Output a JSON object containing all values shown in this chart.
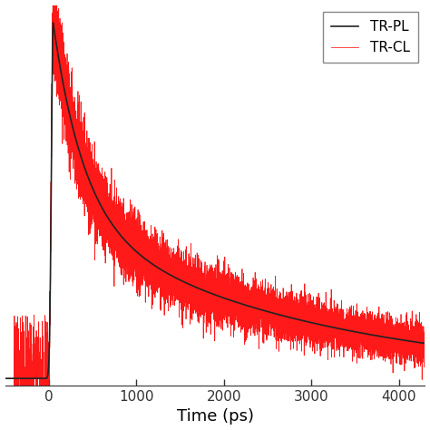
{
  "title": "",
  "xlabel": "Time (ps)",
  "ylabel": "",
  "xlim": [
    -500,
    4300
  ],
  "ylim": [
    -0.02,
    1.05
  ],
  "tr_pl_color": "#222222",
  "tr_cl_color": "#ff0000",
  "legend_labels": [
    "TR-PL",
    "TR-CL"
  ],
  "xticks": [
    0,
    1000,
    2000,
    3000,
    4000
  ],
  "xtick_labels": [
    "0",
    "1000",
    "2000",
    "3000",
    "4000"
  ],
  "background_color": "#ffffff",
  "t0": 50,
  "tau_fast": 350,
  "tau_slow": 2800,
  "A_fast": 0.55,
  "A_slow": 0.45,
  "noise_seed": 42,
  "xlabel_fontsize": 13,
  "tick_fontsize": 11,
  "legend_fontsize": 11
}
